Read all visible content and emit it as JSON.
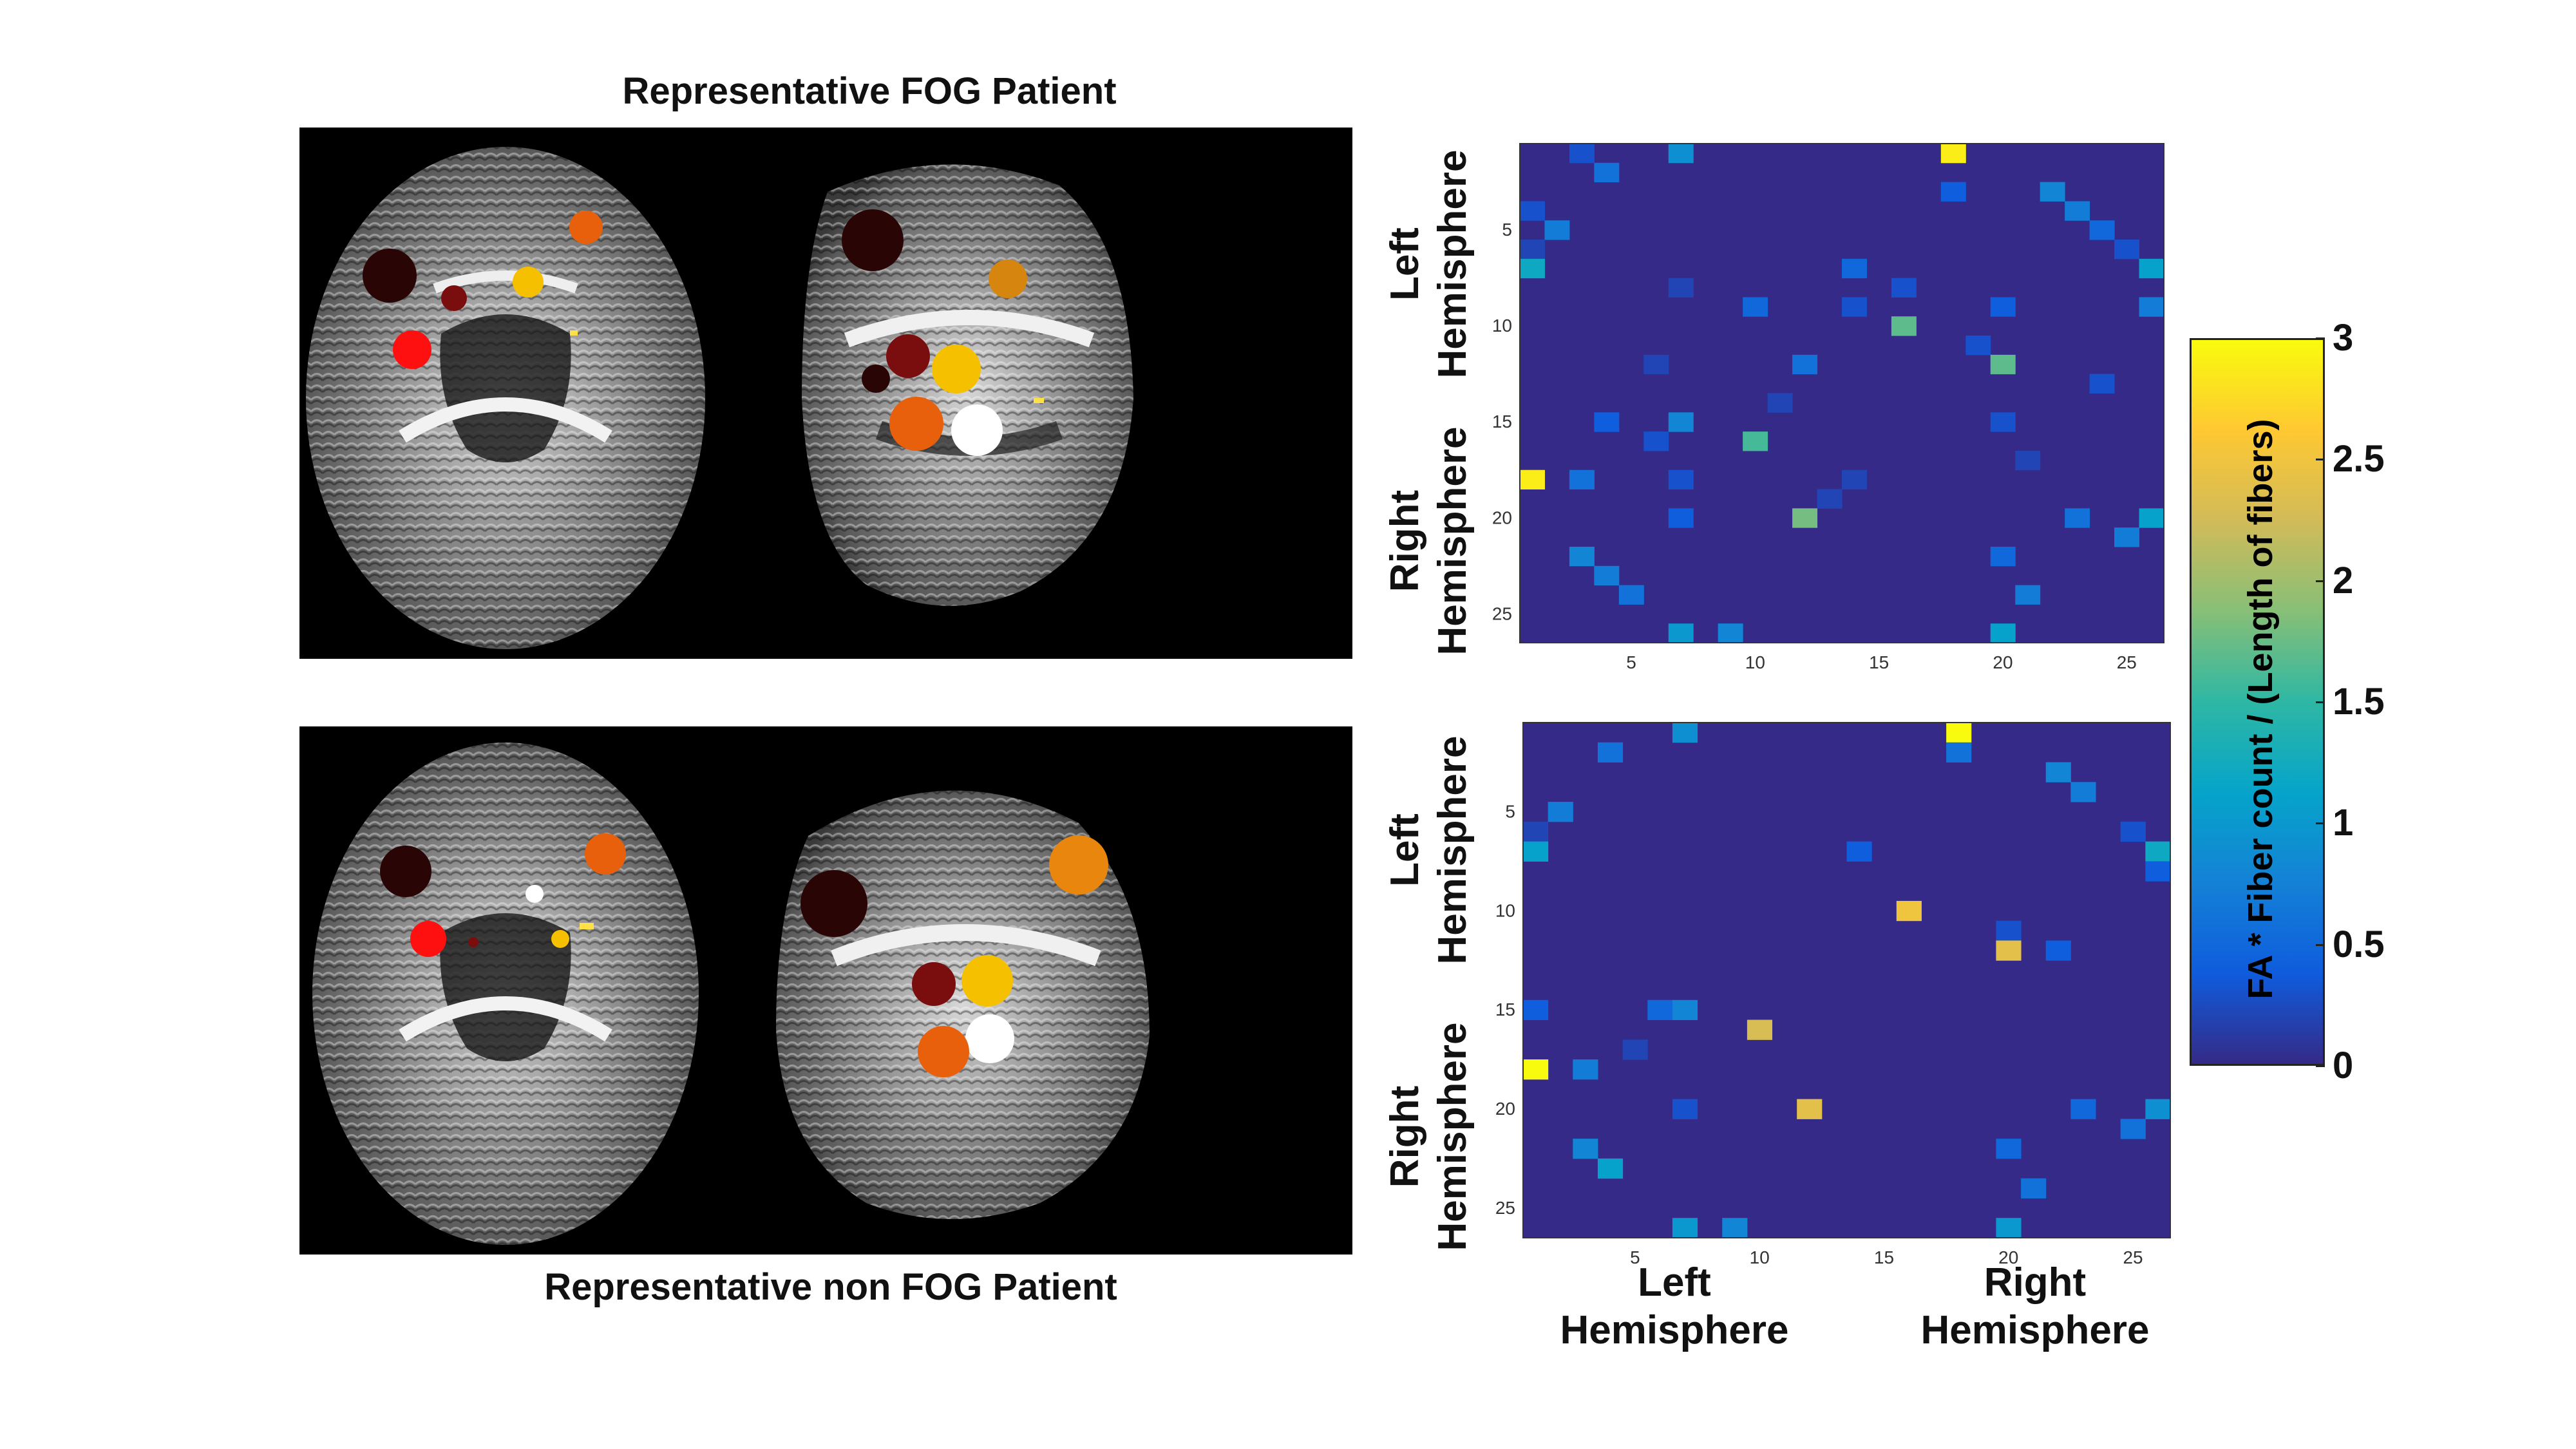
{
  "figure": {
    "top_title": "Representative FOG Patient",
    "bottom_title": "Representative non FOG Patient",
    "matrix_axis_labels": {
      "left_top": "Left",
      "left_bottom": "Hemisphere",
      "right_top": "Right",
      "right_bottom": "Hemisphere"
    },
    "x_tick_labels": [
      "5",
      "10",
      "15",
      "20",
      "25"
    ],
    "y_tick_labels": [
      "5",
      "10",
      "15",
      "20",
      "25"
    ]
  },
  "colorbar": {
    "label": "FA * Fiber count / (Length of fibers)",
    "ticks": [
      "0",
      "0.5",
      "1",
      "1.5",
      "2",
      "2.5",
      "3"
    ],
    "range": [
      0,
      3
    ],
    "colors": [
      "#352a87",
      "#0f5cdd",
      "#1481d6",
      "#06a4ca",
      "#2eb7a4",
      "#87bf77",
      "#d1bb59",
      "#fec832",
      "#f9fb0e"
    ]
  },
  "chart_data": [
    {
      "type": "heatmap",
      "name": "FOG patient connectivity matrix",
      "size": 26,
      "range": [
        0,
        3
      ],
      "cells": [
        [
          1,
          3,
          0.3
        ],
        [
          1,
          7,
          0.9
        ],
        [
          1,
          18,
          2.9
        ],
        [
          2,
          4,
          0.6
        ],
        [
          3,
          18,
          0.4
        ],
        [
          3,
          22,
          0.8
        ],
        [
          4,
          1,
          0.3
        ],
        [
          4,
          23,
          0.7
        ],
        [
          5,
          2,
          0.7
        ],
        [
          5,
          24,
          0.5
        ],
        [
          6,
          1,
          0.2
        ],
        [
          6,
          25,
          0.3
        ],
        [
          7,
          1,
          1.2
        ],
        [
          7,
          14,
          0.5
        ],
        [
          7,
          26,
          1.1
        ],
        [
          8,
          7,
          0.2
        ],
        [
          8,
          16,
          0.3
        ],
        [
          9,
          10,
          0.5
        ],
        [
          9,
          14,
          0.3
        ],
        [
          9,
          20,
          0.4
        ],
        [
          9,
          26,
          0.7
        ],
        [
          10,
          16,
          1.7
        ],
        [
          11,
          19,
          0.3
        ],
        [
          12,
          6,
          0.2
        ],
        [
          12,
          12,
          0.6
        ],
        [
          12,
          20,
          1.7
        ],
        [
          13,
          24,
          0.3
        ],
        [
          14,
          11,
          0.2
        ],
        [
          15,
          4,
          0.4
        ],
        [
          15,
          7,
          0.8
        ],
        [
          15,
          20,
          0.3
        ],
        [
          16,
          6,
          0.3
        ],
        [
          16,
          10,
          1.6
        ],
        [
          17,
          21,
          0.2
        ],
        [
          18,
          1,
          2.9
        ],
        [
          18,
          3,
          0.6
        ],
        [
          18,
          7,
          0.3
        ],
        [
          18,
          14,
          0.2
        ],
        [
          19,
          13,
          0.2
        ],
        [
          20,
          7,
          0.4
        ],
        [
          20,
          12,
          1.8
        ],
        [
          20,
          23,
          0.6
        ],
        [
          20,
          26,
          1.1
        ],
        [
          21,
          25,
          0.7
        ],
        [
          22,
          3,
          0.8
        ],
        [
          22,
          20,
          0.5
        ],
        [
          23,
          4,
          0.7
        ],
        [
          24,
          5,
          0.6
        ],
        [
          24,
          21,
          0.7
        ],
        [
          26,
          7,
          1.0
        ],
        [
          26,
          9,
          0.8
        ],
        [
          26,
          20,
          1.1
        ]
      ]
    },
    {
      "type": "heatmap",
      "name": "non FOG patient connectivity matrix",
      "size": 26,
      "range": [
        0,
        3
      ],
      "cells": [
        [
          1,
          7,
          0.9
        ],
        [
          1,
          18,
          3.0
        ],
        [
          2,
          4,
          0.6
        ],
        [
          2,
          18,
          0.6
        ],
        [
          3,
          22,
          0.8
        ],
        [
          4,
          23,
          0.7
        ],
        [
          5,
          2,
          0.7
        ],
        [
          6,
          1,
          0.2
        ],
        [
          6,
          25,
          0.3
        ],
        [
          7,
          1,
          1.1
        ],
        [
          7,
          14,
          0.4
        ],
        [
          7,
          26,
          1.2
        ],
        [
          8,
          26,
          0.4
        ],
        [
          10,
          16,
          2.5
        ],
        [
          11,
          20,
          0.3
        ],
        [
          12,
          20,
          2.4
        ],
        [
          12,
          22,
          0.4
        ],
        [
          15,
          1,
          0.4
        ],
        [
          15,
          6,
          0.5
        ],
        [
          15,
          7,
          0.8
        ],
        [
          16,
          10,
          2.3
        ],
        [
          17,
          5,
          0.2
        ],
        [
          18,
          1,
          3.0
        ],
        [
          18,
          3,
          0.7
        ],
        [
          20,
          7,
          0.3
        ],
        [
          20,
          12,
          2.4
        ],
        [
          20,
          23,
          0.5
        ],
        [
          20,
          26,
          0.9
        ],
        [
          21,
          25,
          0.6
        ],
        [
          22,
          3,
          0.8
        ],
        [
          22,
          20,
          0.5
        ],
        [
          23,
          4,
          1.1
        ],
        [
          24,
          21,
          0.6
        ],
        [
          26,
          7,
          1.0
        ],
        [
          26,
          9,
          0.8
        ],
        [
          26,
          20,
          1.0
        ]
      ]
    }
  ]
}
